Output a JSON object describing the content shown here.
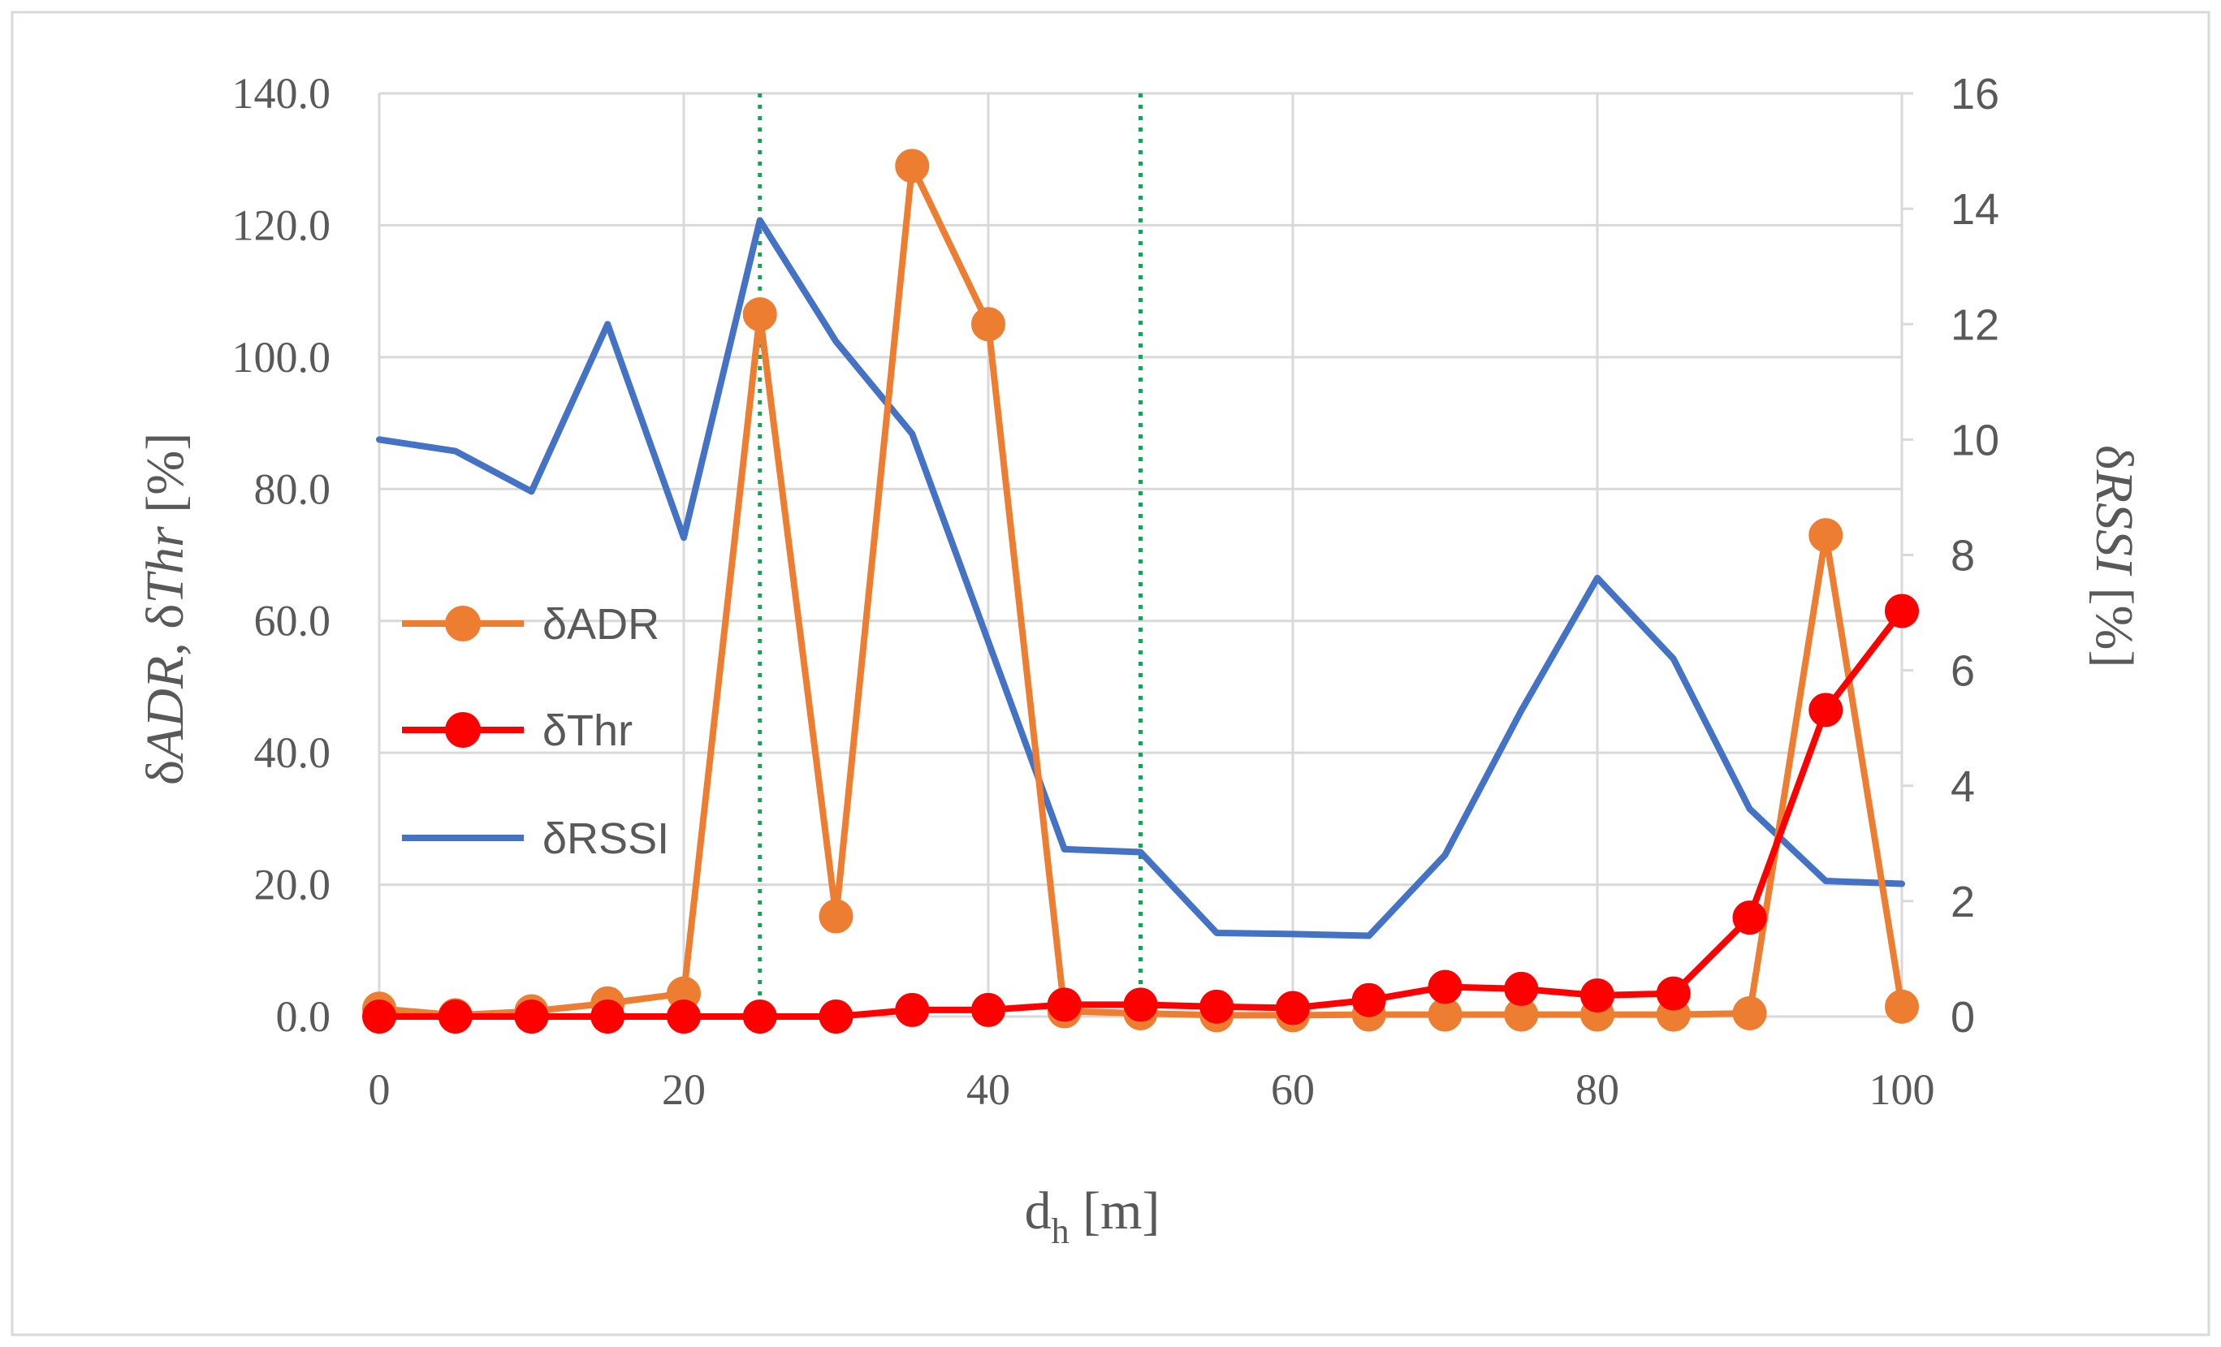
{
  "chart_data": {
    "type": "line",
    "x": [
      0,
      5,
      10,
      15,
      20,
      25,
      30,
      35,
      40,
      45,
      50,
      55,
      60,
      65,
      70,
      75,
      80,
      85,
      90,
      95,
      100
    ],
    "xlim": [
      0,
      100
    ],
    "xticks": [
      "0",
      "20",
      "40",
      "60",
      "80",
      "100"
    ],
    "ylim_left": [
      0,
      140
    ],
    "yticks_left": [
      "0.0",
      "20.0",
      "40.0",
      "60.0",
      "80.0",
      "100.0",
      "120.0",
      "140.0"
    ],
    "ylim_right": [
      0,
      16
    ],
    "yticks_right": [
      "0",
      "2",
      "4",
      "6",
      "8",
      "10",
      "12",
      "14",
      "16"
    ],
    "grid": true,
    "legend_position": "left-middle",
    "reference_lines_x": [
      25,
      50
    ],
    "series": [
      {
        "name": "δADR",
        "axis": "left",
        "color": "#ED7D31",
        "marker": "circle",
        "values": [
          1.2,
          0.2,
          0.8,
          2.0,
          3.5,
          106.5,
          15.2,
          129.0,
          105.0,
          0.8,
          0.5,
          0.2,
          0.2,
          0.3,
          0.3,
          0.3,
          0.3,
          0.3,
          0.5,
          73.0,
          1.5
        ]
      },
      {
        "name": "δThr",
        "axis": "left",
        "color": "#FF0000",
        "marker": "circle",
        "values": [
          0.0,
          0.0,
          0.0,
          0.0,
          0.0,
          0.0,
          0.0,
          1.0,
          1.0,
          1.8,
          1.8,
          1.5,
          1.3,
          2.5,
          4.5,
          4.2,
          3.2,
          3.5,
          15.0,
          46.5,
          61.5
        ]
      },
      {
        "name": "δRSSI",
        "axis": "right",
        "color": "#4472C4",
        "marker": "none",
        "values": [
          10.0,
          9.8,
          9.1,
          12.0,
          8.3,
          13.8,
          11.7,
          10.1,
          6.5,
          2.9,
          2.85,
          1.45,
          1.43,
          1.4,
          2.8,
          5.3,
          7.6,
          6.2,
          3.6,
          2.35,
          2.3
        ]
      }
    ]
  },
  "axes": {
    "x_title_main": "d",
    "x_title_sub": "h",
    "x_title_unit": " [m]",
    "left_title_p1": "δ",
    "left_title_p2": "ADR",
    "left_title_p3": ", δ",
    "left_title_p4": "Thr",
    "left_title_p5": " [%]",
    "right_title_p1": "δ",
    "right_title_p2": "RSSI",
    "right_title_p3": " [%]"
  },
  "colors": {
    "grid": "#D9D9D9",
    "axis_text": "#595959",
    "reference_line": "#00B050",
    "frame": "#D9D9D9"
  }
}
